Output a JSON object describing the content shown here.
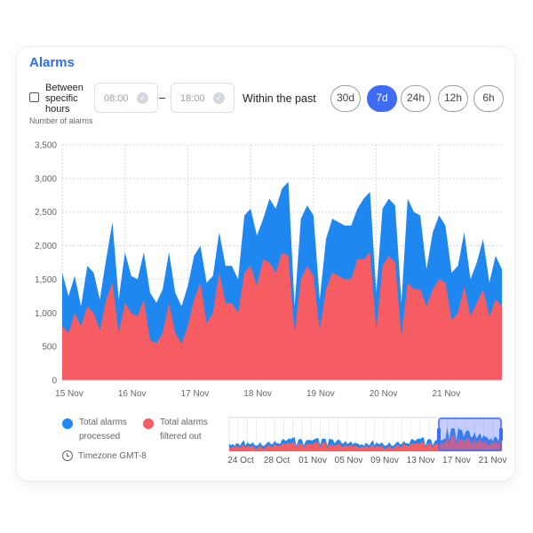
{
  "header": {
    "title": "Alarms"
  },
  "filters": {
    "between_label": "Between specific hours",
    "between_checked": false,
    "start_time": "08:00",
    "end_time": "18:00",
    "separator": "–",
    "within_label": "Within the past",
    "ranges": [
      {
        "label": "30d",
        "active": false
      },
      {
        "label": "7d",
        "active": true
      },
      {
        "label": "24h",
        "active": false
      },
      {
        "label": "12h",
        "active": false
      },
      {
        "label": "6h",
        "active": false
      }
    ]
  },
  "colors": {
    "accent": "#3f6cf5",
    "processed": "#1e88f0",
    "filtered": "#f55d62",
    "title": "#2d6ff0"
  },
  "chart_data": {
    "type": "area",
    "ylabel": "Number of alarms",
    "ylim": [
      0,
      3500
    ],
    "yticks": [
      "0",
      "500",
      "1,000",
      "1,500",
      "2,000",
      "2,500",
      "3,000",
      "3,500"
    ],
    "xticks": [
      "15 Nov",
      "16 Nov",
      "17 Nov",
      "18 Nov",
      "19 Nov",
      "20 Nov",
      "21 Nov"
    ],
    "x_range_days": [
      0,
      7.0
    ],
    "grid": true,
    "series": [
      {
        "name": "Total alarms processed",
        "color": "#1e88f0",
        "x": [
          0,
          0.1,
          0.2,
          0.3,
          0.4,
          0.5,
          0.6,
          0.7,
          0.8,
          0.9,
          1.0,
          1.1,
          1.2,
          1.3,
          1.4,
          1.5,
          1.6,
          1.7,
          1.8,
          1.9,
          2.0,
          2.1,
          2.2,
          2.3,
          2.4,
          2.5,
          2.6,
          2.7,
          2.8,
          2.9,
          3.0,
          3.1,
          3.2,
          3.3,
          3.4,
          3.5,
          3.6,
          3.7,
          3.8,
          3.9,
          4.0,
          4.1,
          4.2,
          4.3,
          4.4,
          4.5,
          4.6,
          4.7,
          4.8,
          4.9,
          5.0,
          5.1,
          5.2,
          5.3,
          5.4,
          5.5,
          5.6,
          5.7,
          5.8,
          5.9,
          6.0,
          6.1,
          6.2,
          6.3,
          6.4,
          6.5,
          6.6,
          6.7,
          6.8,
          6.9,
          7.0
        ],
        "y": [
          1600,
          1250,
          1550,
          1100,
          1700,
          1600,
          1200,
          1800,
          2350,
          1200,
          1900,
          1550,
          1500,
          1900,
          1300,
          1150,
          1350,
          1900,
          1300,
          1100,
          1400,
          1850,
          2000,
          1450,
          1550,
          2200,
          1700,
          1700,
          1500,
          2450,
          2550,
          2150,
          2400,
          2700,
          2550,
          2850,
          2950,
          1100,
          2400,
          2600,
          2450,
          1200,
          2100,
          2400,
          2350,
          2300,
          2300,
          2550,
          2700,
          2800,
          1300,
          2550,
          2700,
          2600,
          1150,
          2700,
          2500,
          2450,
          1650,
          2200,
          2450,
          2300,
          1600,
          1700,
          2200,
          1500,
          1750,
          2100,
          1450,
          1850,
          1650
        ]
      },
      {
        "name": "Total alarms filtered out",
        "color": "#f55d62",
        "x": [
          0,
          0.1,
          0.2,
          0.3,
          0.4,
          0.5,
          0.6,
          0.7,
          0.8,
          0.9,
          1.0,
          1.1,
          1.2,
          1.3,
          1.4,
          1.5,
          1.6,
          1.7,
          1.8,
          1.9,
          2.0,
          2.1,
          2.2,
          2.3,
          2.4,
          2.5,
          2.6,
          2.7,
          2.8,
          2.9,
          3.0,
          3.1,
          3.2,
          3.3,
          3.4,
          3.5,
          3.6,
          3.7,
          3.8,
          3.9,
          4.0,
          4.1,
          4.2,
          4.3,
          4.4,
          4.5,
          4.6,
          4.7,
          4.8,
          4.9,
          5.0,
          5.1,
          5.2,
          5.3,
          5.4,
          5.5,
          5.6,
          5.7,
          5.8,
          5.9,
          6.0,
          6.1,
          6.2,
          6.3,
          6.4,
          6.5,
          6.6,
          6.7,
          6.8,
          6.9,
          7.0
        ],
        "y": [
          800,
          700,
          1000,
          800,
          1100,
          1000,
          750,
          1200,
          1450,
          700,
          1150,
          1000,
          950,
          1200,
          600,
          550,
          700,
          1150,
          700,
          550,
          800,
          1200,
          1450,
          850,
          1000,
          1600,
          1150,
          1150,
          1000,
          1600,
          1700,
          1400,
          1800,
          1750,
          1600,
          1900,
          1850,
          700,
          1500,
          1700,
          1550,
          750,
          1350,
          1600,
          1550,
          1500,
          1500,
          1800,
          1800,
          1900,
          750,
          1700,
          1850,
          1750,
          650,
          1450,
          1350,
          1350,
          1100,
          1350,
          1500,
          1450,
          900,
          1000,
          1400,
          950,
          1150,
          1350,
          950,
          1200,
          1100
        ]
      }
    ],
    "minimap": {
      "xticks": [
        "24 Oct",
        "28 Oct",
        "01 Nov",
        "05 Nov",
        "09 Nov",
        "13 Nov",
        "17 Nov",
        "21 Nov"
      ],
      "selected_range": [
        "15 Nov",
        "21 Nov"
      ]
    }
  },
  "legend": {
    "processed": "Total alarms processed",
    "filtered": "Total alarms filtered out"
  },
  "footer": {
    "timezone": "Timezone GMT-8"
  }
}
